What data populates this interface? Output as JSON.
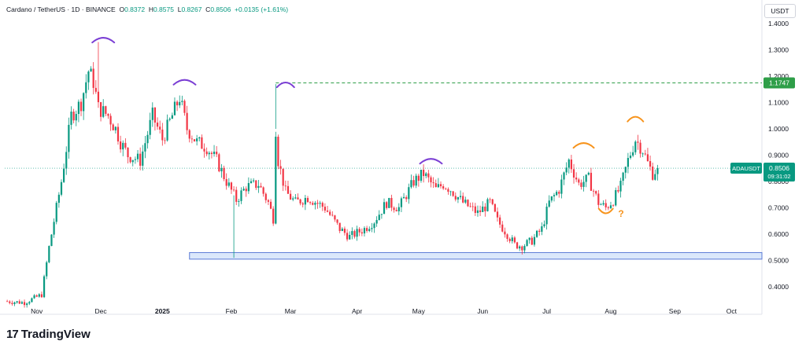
{
  "header": {
    "symbol": "Cardano / TetherUS · 1D · BINANCE",
    "o_label": "O",
    "o": "0.8372",
    "h_label": "H",
    "h": "0.8575",
    "l_label": "L",
    "l": "0.8267",
    "c_label": "C",
    "c": "0.8506",
    "change": "+0.0135 (+1.61%)"
  },
  "currency_button": "USDT",
  "brand": {
    "logo": "17",
    "name": "TradingView"
  },
  "colors": {
    "up": "#089981",
    "down": "#f23645",
    "purple": "#7b3fd4",
    "orange": "#f7941d",
    "dashed": "#2e9e48",
    "zone_fill": "#dbe8fb",
    "zone_stroke": "#5b7bd6"
  },
  "markers": {
    "resistance_label": "1.1747",
    "last_symbol": "ADAUSDT",
    "last_price": "0.8506",
    "countdown": "09:31:02",
    "question_mark": "?"
  },
  "chart_data": {
    "type": "candlestick",
    "symbol": "ADAUSDT",
    "timeframe": "1D",
    "x_labels": [
      "Nov",
      "Dec",
      "2025",
      "Feb",
      "Mar",
      "Apr",
      "May",
      "Jun",
      "Jul",
      "Aug",
      "Sep",
      "Oct"
    ],
    "y_ticks": [
      "1.4000",
      "1.3000",
      "1.2000",
      "1.1000",
      "1.0000",
      "0.9000",
      "0.8000",
      "0.7000",
      "0.6000",
      "0.5000",
      "0.4000"
    ],
    "ylim": [
      0.36,
      1.44
    ],
    "resistance_level": 1.1747,
    "support_zone": [
      0.505,
      0.53
    ],
    "last_price": 0.8506,
    "closes_by_day": [
      [
        0,
        0.345
      ],
      [
        8,
        0.34
      ],
      [
        15,
        0.37
      ],
      [
        18,
        0.55
      ],
      [
        23,
        0.8
      ],
      [
        27,
        1.05
      ],
      [
        31,
        1.1
      ],
      [
        34,
        1.22
      ],
      [
        36,
        1.18
      ],
      [
        38,
        1.08
      ],
      [
        42,
        1.05
      ],
      [
        45,
        1.0
      ],
      [
        47,
        0.95
      ],
      [
        50,
        0.9
      ],
      [
        55,
        0.88
      ],
      [
        60,
        1.05
      ],
      [
        64,
        0.96
      ],
      [
        68,
        1.05
      ],
      [
        71,
        1.12
      ],
      [
        74,
        1.0
      ],
      [
        78,
        0.95
      ],
      [
        82,
        0.93
      ],
      [
        86,
        0.88
      ],
      [
        90,
        0.8
      ],
      [
        94,
        0.73
      ],
      [
        98,
        0.78
      ],
      [
        103,
        0.79
      ],
      [
        107,
        0.72
      ],
      [
        109,
        0.66
      ],
      [
        110,
        1.0
      ],
      [
        111,
        0.88
      ],
      [
        114,
        0.76
      ],
      [
        118,
        0.72
      ],
      [
        123,
        0.74
      ],
      [
        130,
        0.7
      ],
      [
        136,
        0.62
      ],
      [
        140,
        0.59
      ],
      [
        146,
        0.62
      ],
      [
        150,
        0.65
      ],
      [
        155,
        0.72
      ],
      [
        160,
        0.7
      ],
      [
        166,
        0.8
      ],
      [
        170,
        0.83
      ],
      [
        175,
        0.77
      ],
      [
        178,
        0.79
      ],
      [
        181,
        0.77
      ],
      [
        186,
        0.72
      ],
      [
        192,
        0.68
      ],
      [
        197,
        0.72
      ],
      [
        200,
        0.65
      ],
      [
        204,
        0.6
      ],
      [
        207,
        0.56
      ],
      [
        210,
        0.555
      ],
      [
        214,
        0.575
      ],
      [
        218,
        0.62
      ],
      [
        221,
        0.72
      ],
      [
        225,
        0.77
      ],
      [
        229,
        0.88
      ],
      [
        233,
        0.79
      ],
      [
        237,
        0.81
      ],
      [
        241,
        0.72
      ],
      [
        244,
        0.7
      ],
      [
        247,
        0.73
      ],
      [
        250,
        0.78
      ],
      [
        253,
        0.88
      ],
      [
        256,
        0.96
      ],
      [
        259,
        0.92
      ],
      [
        261,
        0.87
      ],
      [
        263,
        0.83
      ],
      [
        265,
        0.8506
      ]
    ]
  }
}
